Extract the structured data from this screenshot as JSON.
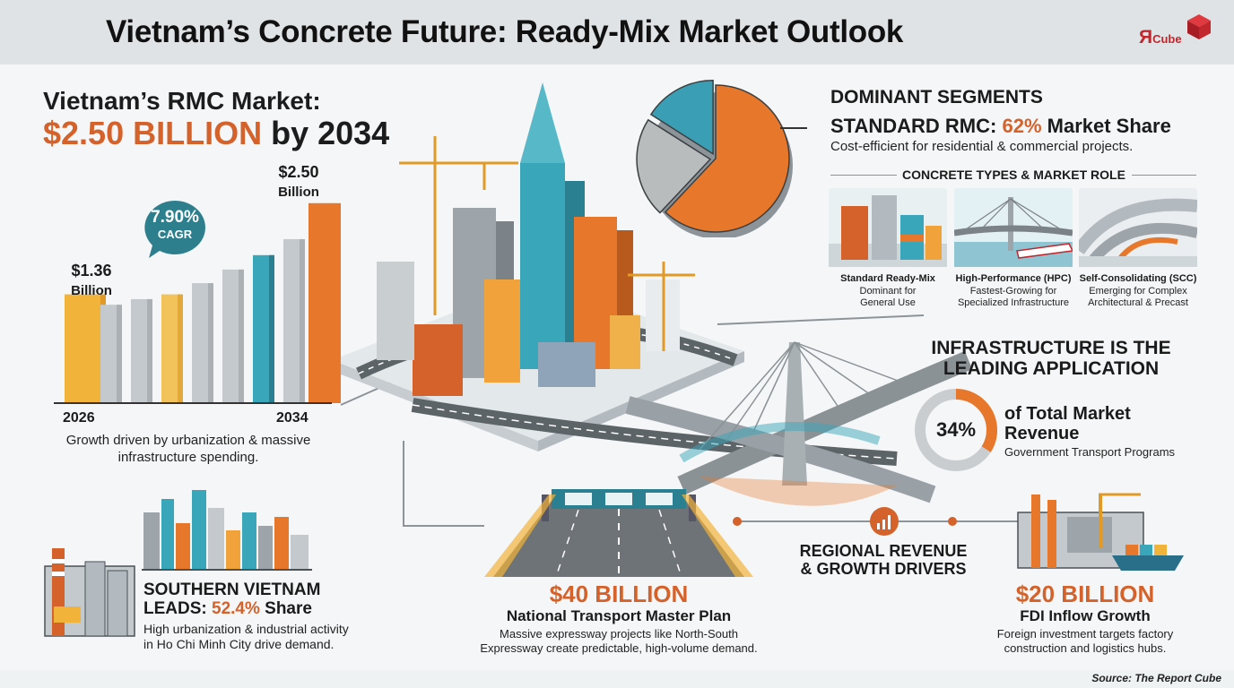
{
  "header": {
    "title": "Vietnam’s Concrete Future: Ready-Mix Market Outlook",
    "logo_main": "Я",
    "logo_sub": "Cube"
  },
  "market_size": {
    "title": "Vietnam’s RMC Market:",
    "value_highlight": "$2.50 BILLION",
    "value_suffix": " by 2034",
    "start_value": "$1.36",
    "start_unit": "Billion",
    "end_value": "$2.50",
    "end_unit": "Billion",
    "start_year": "2026",
    "end_year": "2034",
    "cagr_value": "7.90%",
    "cagr_label": "CAGR",
    "note": "Growth driven by urbanization & massive infrastructure spending."
  },
  "segments": {
    "heading": "DOMINANT SEGMENTS",
    "standard_prefix": "STANDARD RMC: ",
    "standard_share": "62%",
    "standard_suffix": " Market Share",
    "standard_desc": "Cost-efficient for residential & commercial projects.",
    "types_heading": "CONCRETE TYPES & MARKET ROLE",
    "types": [
      {
        "title": "Standard Ready-Mix",
        "line1": "Dominant for",
        "line2": "General Use"
      },
      {
        "title": "High-Performance (HPC)",
        "line1": "Fastest-Growing for",
        "line2": "Specialized Infrastructure"
      },
      {
        "title": "Self-Consolidating (SCC)",
        "line1": "Emerging for Complex",
        "line2": "Architectural & Precast"
      }
    ]
  },
  "infrastructure": {
    "heading_line1": "INFRASTRUCTURE IS THE",
    "heading_line2": "LEADING APPLICATION",
    "share": "34%",
    "main_line1": "of Total Market",
    "main_line2": "Revenue",
    "sub": "Government Transport Programs"
  },
  "south": {
    "line1": "SOUTHERN VIETNAM",
    "line2_prefix": "LEADS: ",
    "share": "52.4%",
    "line2_suffix": " Share",
    "desc1": "High urbanization & industrial activity",
    "desc2": "in Ho Chi Minh City drive demand."
  },
  "transport": {
    "value": "$40 BILLION",
    "title": "National Transport Master Plan",
    "desc1": "Massive expressway projects like North-South",
    "desc2": "Expressway create predictable, high-volume demand."
  },
  "regional": {
    "line1": "REGIONAL REVENUE",
    "line2": "& GROWTH DRIVERS"
  },
  "fdi": {
    "value": "$20 BILLION",
    "title": "FDI Inflow Growth",
    "desc1": "Foreign investment targets factory",
    "desc2": "construction and logistics hubs."
  },
  "footer": {
    "source": "Source: The Report Cube"
  },
  "colors": {
    "accent": "#d4622a",
    "teal": "#3aa6b9",
    "gray": "#b7bcc0",
    "yellow": "#f2b33a",
    "dark": "#1b1b1b"
  },
  "chart_data": [
    {
      "type": "bar",
      "title": "Vietnam’s RMC Market: $2.50 BILLION by 2034",
      "categories": [
        "2026",
        "",
        "",
        "",
        "",
        "",
        "",
        "",
        "2034"
      ],
      "values": [
        1.36,
        1.23,
        1.3,
        1.36,
        1.5,
        1.67,
        1.85,
        2.05,
        2.5
      ],
      "xlabel": "",
      "ylabel": "",
      "ylim": [
        0,
        2.8
      ],
      "grid": false,
      "labeled_points": [
        {
          "x": "2026",
          "y": 1.36,
          "label": "$1.36 Billion"
        },
        {
          "x": "2034",
          "y": 2.5,
          "label": "$2.50 Billion"
        }
      ],
      "annotation": "7.90% CAGR"
    },
    {
      "type": "pie",
      "title": "DOMINANT SEGMENTS",
      "labels": [
        "Standard RMC",
        "",
        ""
      ],
      "values": [
        62,
        22,
        16
      ],
      "colors": [
        "#e7772b",
        "#b9bcbd",
        "#3a9fb4"
      ]
    },
    {
      "type": "pie",
      "title": "INFRASTRUCTURE IS THE LEADING APPLICATION",
      "labels": [
        "Infrastructure",
        ""
      ],
      "values": [
        34,
        66
      ],
      "colors": [
        "#e7772b",
        "#c9cdd0"
      ]
    }
  ]
}
